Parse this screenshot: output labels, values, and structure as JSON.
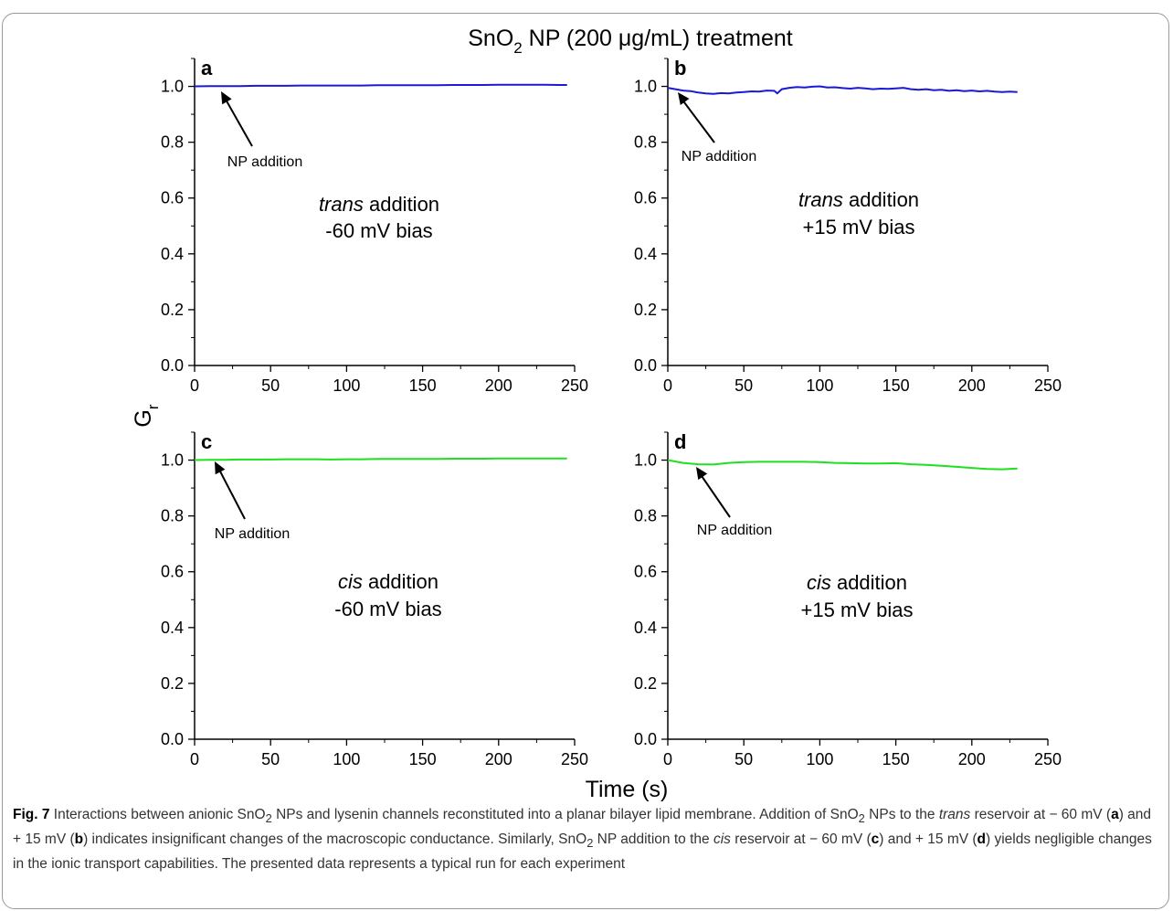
{
  "figure": {
    "title": {
      "pre": "SnO",
      "sub": "2",
      "post": " NP (200 μg/mL) treatment"
    },
    "y_axis_label": {
      "main": "G",
      "sub": "r"
    },
    "x_axis_label": "Time (s)",
    "colors": {
      "blue_series": "#1a1ad6",
      "green_series": "#1fe01f",
      "axis": "#000000",
      "caption": "#333333",
      "border": "#9a9a9a"
    }
  },
  "chart_data": [
    {
      "panel": "a",
      "type": "line",
      "xlim": [
        0,
        250
      ],
      "ylim": [
        0.0,
        1.1
      ],
      "xticks": [
        "0",
        "50",
        "100",
        "150",
        "200",
        "250"
      ],
      "yticks": [
        "0.0",
        "0.2",
        "0.4",
        "0.6",
        "0.8",
        "1.0"
      ],
      "annotation": "NP addition",
      "condition": {
        "side": "trans",
        "rest": " addition",
        "bias": "-60 mV bias"
      },
      "color": "#1a1ad6",
      "x": [
        0,
        10,
        20,
        30,
        40,
        50,
        60,
        70,
        80,
        90,
        100,
        110,
        120,
        130,
        140,
        150,
        160,
        170,
        180,
        190,
        200,
        210,
        220,
        230,
        240,
        245
      ],
      "y": [
        1.0,
        1.001,
        1.001,
        1.001,
        1.002,
        1.002,
        1.002,
        1.003,
        1.003,
        1.003,
        1.003,
        1.003,
        1.004,
        1.004,
        1.004,
        1.004,
        1.004,
        1.005,
        1.005,
        1.005,
        1.006,
        1.006,
        1.006,
        1.006,
        1.005,
        1.005
      ]
    },
    {
      "panel": "b",
      "type": "line",
      "xlim": [
        0,
        250
      ],
      "ylim": [
        0.0,
        1.1
      ],
      "xticks": [
        "0",
        "50",
        "100",
        "150",
        "200",
        "250"
      ],
      "yticks": [
        "0.0",
        "0.2",
        "0.4",
        "0.6",
        "0.8",
        "1.0"
      ],
      "annotation": "NP addition",
      "condition": {
        "side": "trans",
        "rest": " addition",
        "bias": "+15 mV bias"
      },
      "color": "#1a1ad6",
      "x": [
        0,
        5,
        10,
        15,
        20,
        25,
        30,
        35,
        40,
        45,
        50,
        55,
        60,
        65,
        70,
        72,
        75,
        80,
        85,
        90,
        95,
        100,
        105,
        110,
        115,
        120,
        125,
        130,
        135,
        140,
        145,
        150,
        155,
        160,
        165,
        170,
        175,
        180,
        185,
        190,
        195,
        200,
        205,
        210,
        215,
        220,
        225,
        230
      ],
      "y": [
        0.995,
        0.99,
        0.985,
        0.983,
        0.978,
        0.975,
        0.973,
        0.976,
        0.975,
        0.978,
        0.98,
        0.982,
        0.981,
        0.985,
        0.984,
        0.975,
        0.99,
        0.995,
        0.998,
        0.996,
        0.999,
        1.0,
        0.996,
        0.997,
        0.994,
        0.992,
        0.995,
        0.993,
        0.99,
        0.992,
        0.991,
        0.993,
        0.995,
        0.99,
        0.988,
        0.99,
        0.986,
        0.988,
        0.984,
        0.986,
        0.983,
        0.985,
        0.982,
        0.984,
        0.981,
        0.98,
        0.981,
        0.98
      ]
    },
    {
      "panel": "c",
      "type": "line",
      "xlim": [
        0,
        250
      ],
      "ylim": [
        0.0,
        1.1
      ],
      "xticks": [
        "0",
        "50",
        "100",
        "150",
        "200",
        "250"
      ],
      "yticks": [
        "0.0",
        "0.2",
        "0.4",
        "0.6",
        "0.8",
        "1.0"
      ],
      "annotation": "NP addition",
      "condition": {
        "side": "cis",
        "rest": " addition",
        "bias": "-60 mV bias"
      },
      "color": "#1fe01f",
      "x": [
        0,
        10,
        20,
        30,
        40,
        50,
        60,
        70,
        80,
        90,
        100,
        110,
        120,
        130,
        140,
        150,
        160,
        170,
        180,
        190,
        200,
        210,
        220,
        230,
        240,
        245
      ],
      "y": [
        1.0,
        1.001,
        1.001,
        1.002,
        1.002,
        1.002,
        1.003,
        1.003,
        1.003,
        1.002,
        1.003,
        1.003,
        1.004,
        1.004,
        1.004,
        1.004,
        1.004,
        1.005,
        1.005,
        1.005,
        1.006,
        1.006,
        1.006,
        1.006,
        1.006,
        1.006
      ]
    },
    {
      "panel": "d",
      "type": "line",
      "xlim": [
        0,
        250
      ],
      "ylim": [
        0.0,
        1.1
      ],
      "xticks": [
        "0",
        "50",
        "100",
        "150",
        "200",
        "250"
      ],
      "yticks": [
        "0.0",
        "0.2",
        "0.4",
        "0.6",
        "0.8",
        "1.0"
      ],
      "annotation": "NP addition",
      "condition": {
        "side": "cis",
        "rest": " addition",
        "bias": "+15 mV bias"
      },
      "color": "#1fe01f",
      "x": [
        0,
        10,
        20,
        30,
        40,
        50,
        60,
        70,
        80,
        90,
        100,
        110,
        120,
        130,
        140,
        150,
        160,
        170,
        180,
        190,
        200,
        210,
        220,
        230
      ],
      "y": [
        1.0,
        0.99,
        0.985,
        0.984,
        0.99,
        0.993,
        0.994,
        0.994,
        0.994,
        0.994,
        0.993,
        0.99,
        0.989,
        0.988,
        0.988,
        0.989,
        0.985,
        0.983,
        0.98,
        0.976,
        0.972,
        0.968,
        0.967,
        0.97
      ]
    }
  ],
  "caption": {
    "fig_label": "Fig. 7",
    "text_1": "  Interactions between anionic SnO",
    "sub_1": "2",
    "text_2": " NPs and lysenin channels reconstituted into a planar bilayer lipid membrane. Addition of SnO",
    "sub_2": "2",
    "text_3": " NPs to the ",
    "it_1": "trans",
    "text_4": " reservoir at − 60 mV (",
    "bold_a": "a",
    "text_5": ") and + 15 mV (",
    "bold_b": "b",
    "text_6": ") indicates insignificant changes of the macroscopic conductance. Similarly, SnO",
    "sub_3": "2",
    "text_7": " NP addition to the ",
    "it_2": "cis",
    "text_8": " reservoir at − 60 mV (",
    "bold_c": "c",
    "text_9": ") and + 15 mV (",
    "bold_d": "d",
    "text_10": ") yields negligible changes in the ionic transport capabilities. The presented data represents a typical run for each experiment"
  }
}
